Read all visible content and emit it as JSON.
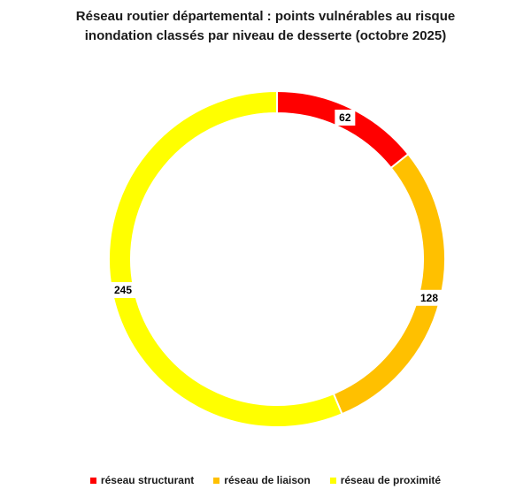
{
  "chart_data": {
    "type": "pie",
    "variant": "donut",
    "title_line1": "Réseau routier départemental : points vulnérables au risque",
    "title_line2": "inondation classés par niveau de desserte (octobre 2025)",
    "categories": [
      "réseau structurant",
      "réseau de liaison",
      "réseau de proximité"
    ],
    "values": [
      62,
      128,
      245
    ],
    "colors": [
      "#ff0000",
      "#ffc000",
      "#ffff00"
    ],
    "legend_position": "bottom",
    "data_labels": true
  }
}
